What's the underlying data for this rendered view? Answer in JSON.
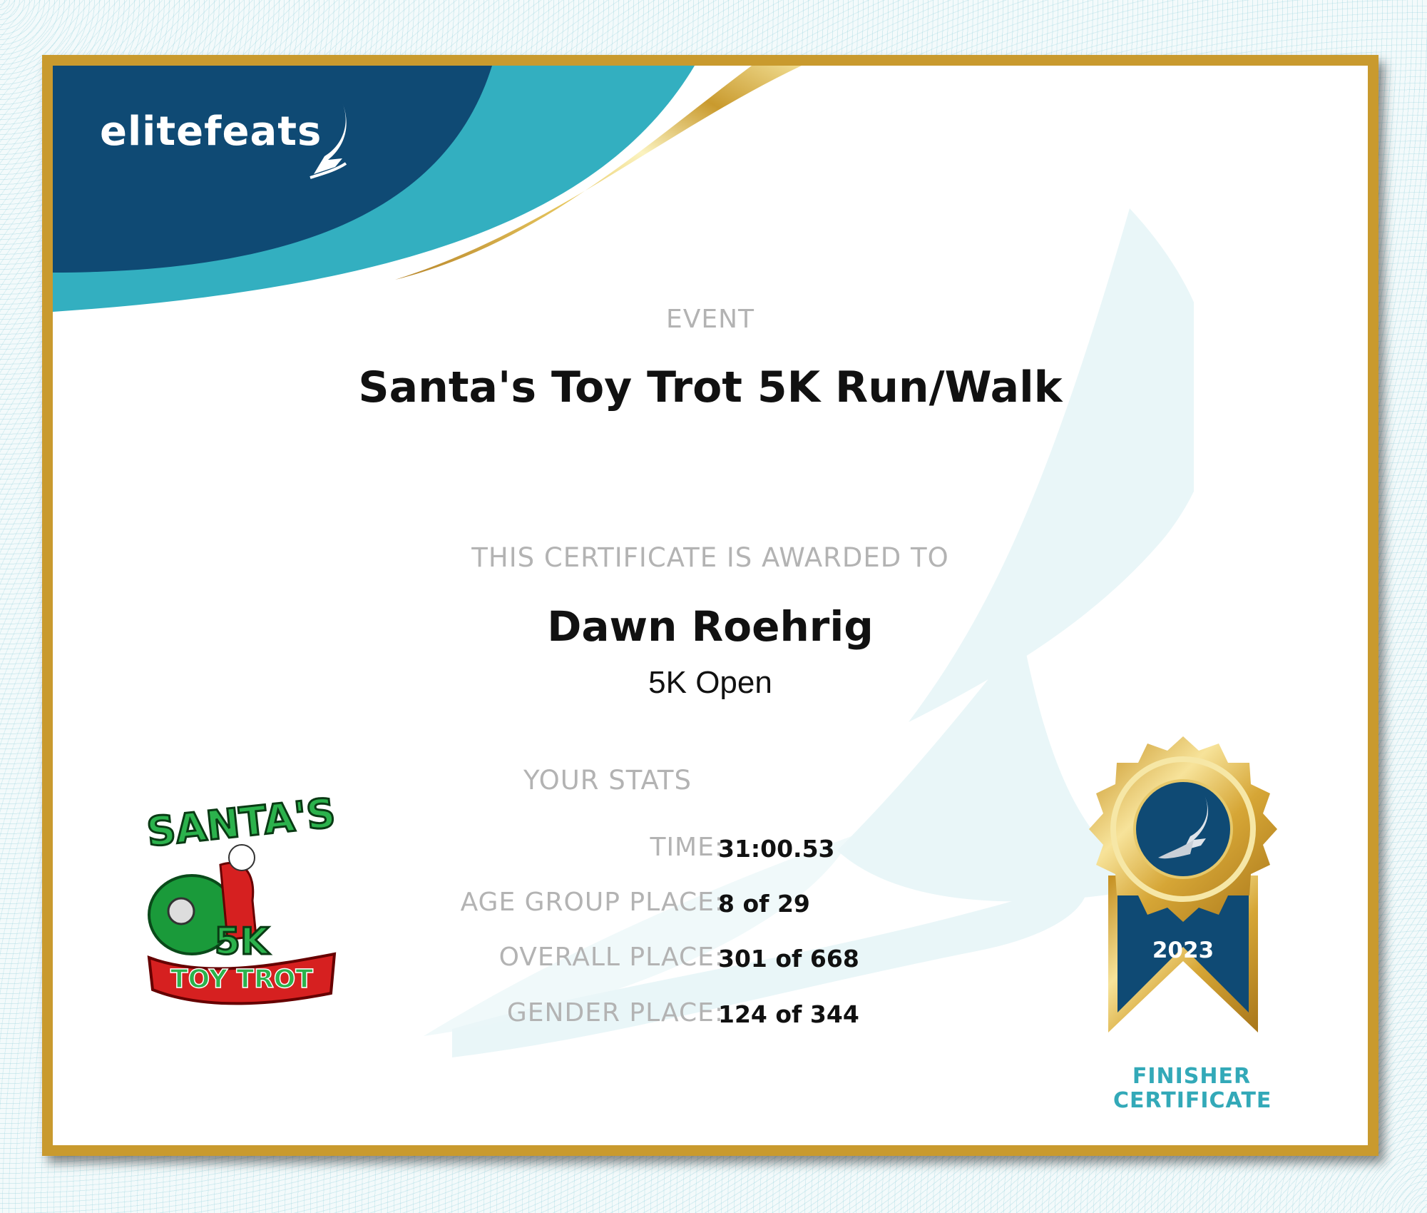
{
  "brand": {
    "logo_text": "elitefeats",
    "colors": {
      "navy": "#0f4a74",
      "teal": "#33afc0",
      "gold": "#c99a2e"
    }
  },
  "event": {
    "label": "EVENT",
    "name": "Santa's Toy Trot 5K Run/Walk"
  },
  "award": {
    "label": "THIS CERTIFICATE IS AWARDED TO",
    "name": "Dawn Roehrig",
    "division": "5K Open"
  },
  "stats": {
    "label": "YOUR STATS",
    "rows": [
      {
        "label": "TIME:",
        "value": "31:00.53"
      },
      {
        "label": "AGE GROUP PLACE:",
        "value": "8 of 29"
      },
      {
        "label": "OVERALL PLACE:",
        "value": "301 of 668"
      },
      {
        "label": "GENDER PLACE:",
        "value": "124 of 344"
      }
    ]
  },
  "event_logo": {
    "line1": "SANTA'S",
    "line2": "5K",
    "line3": "TOY TROT"
  },
  "medal": {
    "year": "2023",
    "icon": "winged-foot-icon",
    "caption_line1": "FINISHER",
    "caption_line2": "CERTIFICATE"
  }
}
